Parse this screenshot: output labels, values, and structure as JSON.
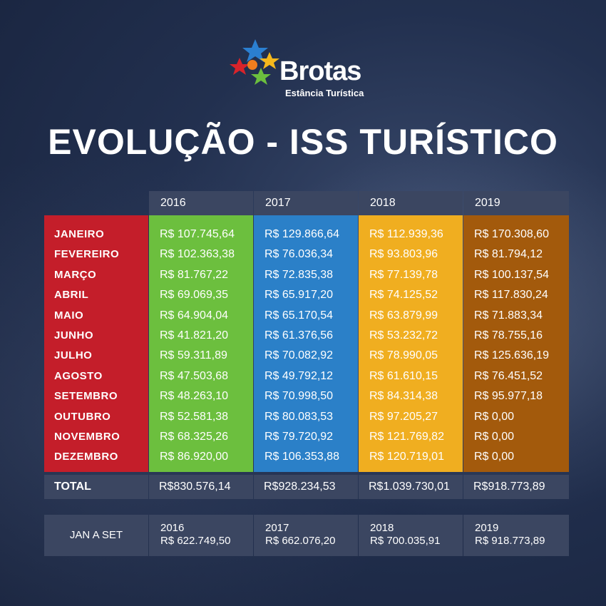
{
  "logo": {
    "name": "Brotas",
    "subtitle": "Estância Turística"
  },
  "title": "EVOLUÇÃO - ISS TURÍSTICO",
  "chart_data": {
    "type": "table",
    "title": "EVOLUÇÃO - ISS TURÍSTICO",
    "columns": [
      "2016",
      "2017",
      "2018",
      "2019"
    ],
    "rows": [
      "JANEIRO",
      "FEVEREIRO",
      "MARÇO",
      "ABRIL",
      "MAIO",
      "JUNHO",
      "JULHO",
      "AGOSTO",
      "SETEMBRO",
      "OUTUBRO",
      "NOVEMBRO",
      "DEZEMBRO"
    ],
    "cells": [
      [
        "R$ 107.745,64",
        "R$ 129.866,64",
        "R$ 112.939,36",
        "R$ 170.308,60"
      ],
      [
        "R$ 102.363,38",
        "R$ 76.036,34",
        "R$ 93.803,96",
        "R$ 81.794,12"
      ],
      [
        "R$ 81.767,22",
        "R$ 72.835,38",
        "R$ 77.139,78",
        "R$ 100.137,54"
      ],
      [
        "R$ 69.069,35",
        "R$ 65.917,20",
        "R$ 74.125,52",
        "R$ 117.830,24"
      ],
      [
        "R$ 64.904,04",
        "R$ 65.170,54",
        "R$ 63.879,99",
        "R$ 71.883,34"
      ],
      [
        "R$ 41.821,20",
        "R$ 61.376,56",
        "R$ 53.232,72",
        "R$ 78.755,16"
      ],
      [
        "R$ 59.311,89",
        "R$ 70.082,92",
        "R$ 78.990,05",
        "R$ 125.636,19"
      ],
      [
        "R$ 47.503,68",
        "R$ 49.792,12",
        "R$ 61.610,15",
        "R$ 76.451,52"
      ],
      [
        "R$ 48.263,10",
        "R$ 70.998,50",
        "R$ 84.314,38",
        "R$ 95.977,18"
      ],
      [
        "R$ 52.581,38",
        "R$ 80.083,53",
        "R$ 97.205,27",
        "R$ 0,00"
      ],
      [
        "R$ 68.325,26",
        "R$ 79.720,92",
        "R$ 121.769,82",
        "R$ 0,00"
      ],
      [
        "R$ 86.920,00",
        "R$ 106.353,88",
        "R$ 120.719,01",
        "R$ 0,00"
      ]
    ],
    "total_label": "TOTAL",
    "totals": [
      "R$830.576,14",
      "R$928.234,53",
      "R$1.039.730,01",
      "R$918.773,89"
    ],
    "jan_set_label": "JAN A SET",
    "jan_set": [
      {
        "year": "2016",
        "value": "R$ 622.749,50"
      },
      {
        "year": "2017",
        "value": "R$ 662.076,20"
      },
      {
        "year": "2018",
        "value": "R$ 700.035,91"
      },
      {
        "year": "2019",
        "value": "R$ 918.773,89"
      }
    ]
  },
  "colors": {
    "months": "#c41e2a",
    "2016": "#6cbf3e",
    "2017": "#2b80c8",
    "2018": "#f0ae20",
    "2019": "#a35a0c",
    "header": "#3b4661"
  },
  "icons": [
    "brotas-logo-icon"
  ]
}
